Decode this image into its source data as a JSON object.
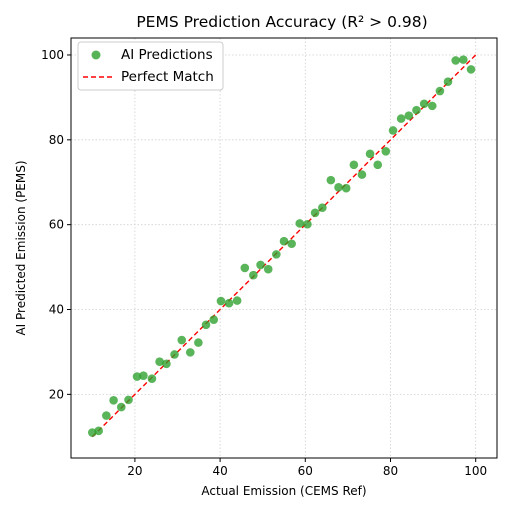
{
  "chart_data": {
    "type": "scatter",
    "title": "PEMS Prediction Accuracy (R² > 0.98)",
    "xlabel": "Actual Emission (CEMS Ref)",
    "ylabel": "AI Predicted Emission (PEMS)",
    "xlim": [
      5,
      105
    ],
    "ylim": [
      5,
      104
    ],
    "xticks": [
      20,
      40,
      60,
      80,
      100
    ],
    "yticks": [
      20,
      40,
      60,
      80,
      100
    ],
    "grid": true,
    "legend_position": "top-left",
    "colors": {
      "points": "#2ca02c",
      "line": "#ff0000",
      "grid": "#d0d0d0"
    },
    "series": [
      {
        "name": "AI Predictions",
        "kind": "scatter",
        "x": [
          10.0,
          11.5,
          13.3,
          15.0,
          16.8,
          18.5,
          20.5,
          22.0,
          24.0,
          25.8,
          27.4,
          29.3,
          31.0,
          33.0,
          34.9,
          36.7,
          38.5,
          40.2,
          42.1,
          44.0,
          45.8,
          47.8,
          49.5,
          51.3,
          53.2,
          55.0,
          56.8,
          58.7,
          60.5,
          62.3,
          64.0,
          66.0,
          67.8,
          69.6,
          71.4,
          73.3,
          75.2,
          77.0,
          78.9,
          80.6,
          82.5,
          84.3,
          86.1,
          87.9,
          89.8,
          91.6,
          93.5,
          95.3,
          97.1,
          98.9
        ],
        "y": [
          11.0,
          11.4,
          15.0,
          18.6,
          17.0,
          18.7,
          24.2,
          24.4,
          23.7,
          27.7,
          27.2,
          29.4,
          32.8,
          29.9,
          32.2,
          36.4,
          37.6,
          42.0,
          41.5,
          42.1,
          49.8,
          48.1,
          50.5,
          49.5,
          53.0,
          56.1,
          55.5,
          60.3,
          60.1,
          62.8,
          64.0,
          70.5,
          68.8,
          68.6,
          74.1,
          71.8,
          76.7,
          74.1,
          77.3,
          82.2,
          85.0,
          85.7,
          87.0,
          88.5,
          88.0,
          91.5,
          93.7,
          98.7,
          98.9,
          96.6
        ]
      },
      {
        "name": "Perfect Match",
        "kind": "line",
        "x": [
          10,
          100
        ],
        "y": [
          10,
          100
        ]
      }
    ]
  }
}
